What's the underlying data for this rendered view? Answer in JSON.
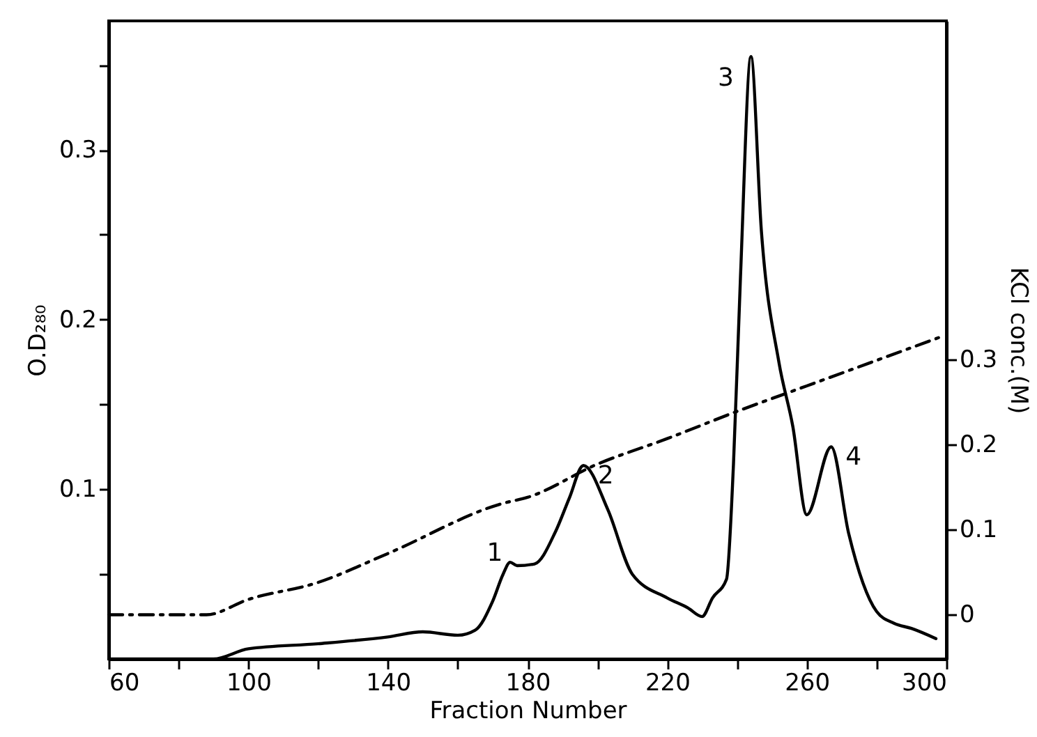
{
  "chart_data": {
    "type": "line",
    "xlabel": "Fraction Number",
    "ylabel": "O.D₂₈₀",
    "y2label": "KCl conc.(M)",
    "xlim": [
      60,
      300
    ],
    "ylim": [
      0,
      0.376
    ],
    "y2lim": [
      -0.052,
      0.698
    ],
    "xticks": [
      60,
      {
        "value": 80,
        "label": null
      },
      100,
      {
        "value": 120,
        "label": null
      },
      140,
      {
        "value": 160,
        "label": null
      },
      180,
      {
        "value": 200,
        "label": null
      },
      220,
      {
        "value": 240,
        "label": null
      },
      260,
      {
        "value": 280,
        "label": null
      },
      300
    ],
    "yticks": [
      {
        "value": 0.05,
        "label": null
      },
      0.1,
      {
        "value": 0.15,
        "label": null
      },
      0.2,
      {
        "value": 0.25,
        "label": null
      },
      0.3,
      {
        "value": 0.35,
        "label": null
      }
    ],
    "y2ticks": [
      0,
      0.1,
      0.2,
      0.3
    ],
    "series": [
      {
        "color": "#000000",
        "x": [
          60,
          90,
          100,
          120,
          140,
          150,
          160,
          165,
          170,
          173,
          175,
          177,
          182,
          188,
          192,
          196,
          203,
          210,
          220,
          226,
          230,
          233,
          237,
          239,
          241,
          244,
          247,
          252,
          256,
          260,
          267,
          272,
          280,
          285,
          290,
          297
        ],
        "values": [
          0,
          0,
          0.006,
          0.009,
          0.013,
          0.016,
          0.014,
          0.017,
          0.034,
          0.05,
          0.057,
          0.055,
          0.056,
          0.075,
          0.095,
          0.114,
          0.088,
          0.05,
          0.036,
          0.03,
          0.025,
          0.036,
          0.047,
          0.115,
          0.225,
          0.355,
          0.252,
          0.175,
          0.137,
          0.085,
          0.125,
          0.074,
          0.028,
          0.021,
          0.018,
          0.012
        ]
      },
      {
        "color": "#000000",
        "axis": "y2",
        "line_style": "dashed",
        "x": [
          60,
          88,
          100,
          120,
          140,
          173,
          180,
          200,
          220,
          240,
          260,
          298
        ],
        "values": [
          0,
          0,
          0.018,
          0.038,
          0.072,
          0.131,
          0.138,
          0.177,
          0.207,
          0.239,
          0.269,
          0.326
        ]
      }
    ],
    "annotations": [
      {
        "text": "1",
        "x": 175,
        "y": 0.057
      },
      {
        "text": "2",
        "x": 196,
        "y": 0.114
      },
      {
        "text": "3",
        "x": 244,
        "y": 0.355
      },
      {
        "text": "4",
        "x": 267,
        "y": 0.125
      }
    ]
  }
}
